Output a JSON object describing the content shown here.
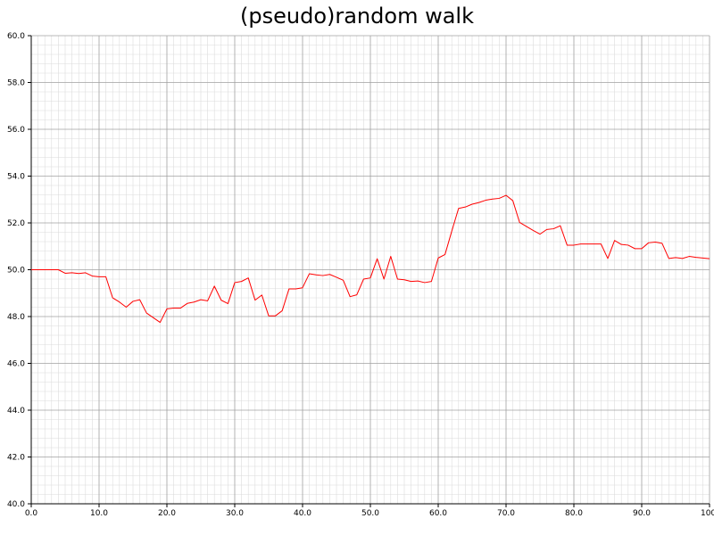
{
  "chart_data": {
    "type": "line",
    "title": "(pseudo)random walk",
    "xlabel": "",
    "ylabel": "",
    "xlim": [
      0,
      100
    ],
    "ylim": [
      40,
      60
    ],
    "grid": true,
    "x_tick_values": [
      0,
      10,
      20,
      30,
      40,
      50,
      60,
      70,
      80,
      90,
      100
    ],
    "x_tick_labels": [
      "0.0",
      "10.0",
      "20.0",
      "30.0",
      "40.0",
      "50.0",
      "60.0",
      "70.0",
      "80.0",
      "90.0",
      "100."
    ],
    "y_tick_values": [
      40,
      42,
      44,
      46,
      48,
      50,
      52,
      54,
      56,
      58,
      60
    ],
    "y_tick_labels": [
      "40.0",
      "42.0",
      "44.0",
      "46.0",
      "48.0",
      "50.0",
      "52.0",
      "54.0",
      "56.0",
      "58.0",
      "60.0"
    ],
    "series": [
      {
        "color": "#ff0000",
        "x": [
          0,
          1,
          2,
          3,
          4,
          5,
          6,
          7,
          8,
          9,
          10,
          11,
          12,
          13,
          14,
          15,
          16,
          17,
          18,
          19,
          20,
          21,
          22,
          23,
          24,
          25,
          26,
          27,
          28,
          29,
          30,
          31,
          32,
          33,
          34,
          35,
          36,
          37,
          38,
          39,
          40,
          41,
          42,
          43,
          44,
          45,
          46,
          47,
          48,
          49,
          50,
          51,
          52,
          53,
          54,
          55,
          56,
          57,
          58,
          59,
          60,
          61,
          62,
          63,
          64,
          65,
          66,
          67,
          68,
          69,
          70,
          71,
          72,
          73,
          74,
          75,
          76,
          77,
          78,
          79,
          80,
          81,
          82,
          83,
          84,
          85,
          86,
          87,
          88,
          89,
          90,
          91,
          92,
          93,
          94,
          95,
          96,
          97,
          98,
          99,
          100
        ],
        "y": [
          50.0,
          50.0,
          50.0,
          50.0,
          50.0,
          49.85,
          49.87,
          49.84,
          49.87,
          49.73,
          49.7,
          49.7,
          48.8,
          48.62,
          48.4,
          48.65,
          48.72,
          48.15,
          47.95,
          47.75,
          48.33,
          48.36,
          48.36,
          48.56,
          48.62,
          48.72,
          48.67,
          49.3,
          48.7,
          48.55,
          49.45,
          49.5,
          49.65,
          48.7,
          48.92,
          48.03,
          48.03,
          48.25,
          49.18,
          49.18,
          49.23,
          49.83,
          49.78,
          49.75,
          49.8,
          49.68,
          49.55,
          48.85,
          48.93,
          49.6,
          49.65,
          50.47,
          49.6,
          50.57,
          49.6,
          49.57,
          49.5,
          49.52,
          49.45,
          49.5,
          50.5,
          50.65,
          51.65,
          52.62,
          52.68,
          52.8,
          52.87,
          52.97,
          53.02,
          53.05,
          53.18,
          52.95,
          52.02,
          51.85,
          51.68,
          51.52,
          51.72,
          51.75,
          51.88,
          51.05,
          51.05,
          51.1,
          51.1,
          51.1,
          51.1,
          50.48,
          51.25,
          51.08,
          51.05,
          50.9,
          50.9,
          51.15,
          51.18,
          51.13,
          50.48,
          50.52,
          50.48,
          50.57,
          50.53,
          50.5,
          50.47
        ]
      }
    ]
  }
}
